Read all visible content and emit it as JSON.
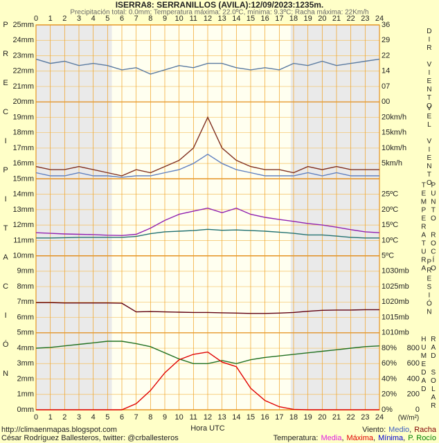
{
  "header": {
    "title": "ISERRA8: SERRANILLOS (AVILA):12/09/2023:1235m.",
    "subtitle": "Precipitación total: 0.0mm; Temperatura máxima: 22.0ºC, mínima: 9.3ºC; Racha máxima: 22Km/h"
  },
  "left_label": "PRECIPITACIÓN",
  "precipitation_axis": {
    "ylim": [
      0,
      25
    ],
    "yticks": [
      {
        "value": 0,
        "label": "0mm"
      },
      {
        "value": 1,
        "label": "1mm"
      },
      {
        "value": 2,
        "label": "2mm"
      },
      {
        "value": 3,
        "label": "3mm"
      },
      {
        "value": 4,
        "label": "4mm"
      },
      {
        "value": 5,
        "label": "5mm"
      },
      {
        "value": 6,
        "label": "6mm"
      },
      {
        "value": 7,
        "label": "7mm"
      },
      {
        "value": 8,
        "label": "8mm"
      },
      {
        "value": 9,
        "label": "9mm"
      },
      {
        "value": 10,
        "label": "10mm"
      },
      {
        "value": 11,
        "label": "11mm"
      },
      {
        "value": 12,
        "label": "12mm"
      },
      {
        "value": 13,
        "label": "13mm"
      },
      {
        "value": 14,
        "label": "14mm"
      },
      {
        "value": 15,
        "label": "15mm"
      },
      {
        "value": 16,
        "label": "16mm"
      },
      {
        "value": 17,
        "label": "17mm"
      },
      {
        "value": 18,
        "label": "18mm"
      },
      {
        "value": 19,
        "label": "19mm"
      },
      {
        "value": 20,
        "label": "20mm"
      },
      {
        "value": 21,
        "label": "21mm"
      },
      {
        "value": 22,
        "label": "22mm"
      },
      {
        "value": 23,
        "label": "23mm"
      },
      {
        "value": 24,
        "label": "24mm"
      },
      {
        "value": 25,
        "label": "25mm"
      }
    ]
  },
  "time_axis": {
    "xlim": [
      0,
      24
    ],
    "xticks": [
      0,
      1,
      2,
      3,
      4,
      5,
      6,
      7,
      8,
      9,
      10,
      11,
      12,
      13,
      14,
      15,
      16,
      17,
      18,
      19,
      20,
      21,
      22,
      23,
      24
    ],
    "xlabel": "Hora UTC",
    "night": [
      [
        0,
        5.3
      ],
      [
        17.8,
        24
      ]
    ]
  },
  "chart_data": [
    {
      "type": "line",
      "right_labels": [
        {
          "text": "DIR VIENTO",
          "color": "#555555"
        }
      ],
      "label_color": "#444444",
      "ylim": [
        0,
        36
      ],
      "yticks": [
        {
          "value": 0,
          "label": "00"
        },
        {
          "value": 7.2,
          "label": "07"
        },
        {
          "value": 14.4,
          "label": "14"
        },
        {
          "value": 21.6,
          "label": "22"
        },
        {
          "value": 28.8,
          "label": "29"
        },
        {
          "value": 36,
          "label": "36"
        }
      ],
      "x": [
        0,
        1,
        2,
        3,
        4,
        5,
        6,
        7,
        8,
        9,
        10,
        11,
        12,
        13,
        14,
        15,
        16,
        17,
        18,
        19,
        20,
        21,
        22,
        23,
        24
      ],
      "series": [
        {
          "name": "Dirección",
          "color": "#5a7aa0",
          "values": [
            20,
            18,
            19,
            17,
            18,
            17,
            15,
            16,
            13,
            15,
            17,
            16,
            18,
            18,
            16,
            15,
            16,
            15,
            18,
            17,
            19,
            17,
            18,
            19,
            20
          ]
        }
      ]
    },
    {
      "type": "line",
      "right_labels": [
        {
          "text": "VEL VIENTO",
          "color": "#555555"
        }
      ],
      "label_color": "#444444",
      "ylim": [
        0,
        25
      ],
      "yticks": [
        {
          "value": 5,
          "label": "5km/h"
        },
        {
          "value": 10,
          "label": "10km/h"
        },
        {
          "value": 15,
          "label": "15km/h"
        },
        {
          "value": 20,
          "label": "20km/h"
        }
      ],
      "x": [
        0,
        1,
        2,
        3,
        4,
        5,
        6,
        7,
        8,
        9,
        10,
        11,
        12,
        13,
        14,
        15,
        16,
        17,
        18,
        19,
        20,
        21,
        22,
        23,
        24
      ],
      "series": [
        {
          "name": "Racha",
          "color": "#803020",
          "values": [
            4,
            3,
            3,
            4,
            3,
            2,
            1,
            3,
            2,
            4,
            6,
            10,
            20,
            10,
            6,
            4,
            3,
            3,
            2,
            4,
            3,
            4,
            3,
            3,
            3
          ]
        },
        {
          "name": "Medio",
          "color": "#6080c0",
          "values": [
            2,
            1,
            1,
            2,
            1,
            1,
            0.5,
            1,
            1,
            2,
            3,
            5,
            8,
            5,
            3,
            2,
            1,
            1,
            1,
            2,
            1,
            2,
            1,
            1,
            1
          ]
        }
      ]
    },
    {
      "type": "line",
      "right_labels": [
        {
          "text": "TEMPERATURA",
          "color": "#555555"
        },
        {
          "text": "PUNTO ROCÍO",
          "color": "#555555"
        }
      ],
      "label_color": "#444444",
      "ylim": [
        5,
        30
      ],
      "yticks": [
        {
          "value": 5,
          "label": "5ºC"
        },
        {
          "value": 10,
          "label": "10ºC"
        },
        {
          "value": 15,
          "label": "15ºC"
        },
        {
          "value": 20,
          "label": "20ºC"
        },
        {
          "value": 25,
          "label": "25ºC"
        }
      ],
      "x": [
        0,
        1,
        2,
        3,
        4,
        5,
        6,
        7,
        8,
        9,
        10,
        11,
        12,
        13,
        14,
        15,
        16,
        17,
        18,
        19,
        20,
        21,
        22,
        23,
        24
      ],
      "series": [
        {
          "name": "Media",
          "color": "#9020b0",
          "values": [
            12.5,
            12.3,
            12.1,
            12,
            11.9,
            11.7,
            11.6,
            12,
            14,
            16.5,
            18.5,
            19.5,
            20.5,
            19,
            20.5,
            18.5,
            17.5,
            16.8,
            16.2,
            15.5,
            15,
            14.3,
            13.5,
            12.8,
            12.5
          ]
        },
        {
          "name": "P. Rocío",
          "color": "#207070",
          "values": [
            10.8,
            10.8,
            10.9,
            11,
            11,
            11,
            11,
            11.3,
            12.2,
            12.8,
            13,
            13.2,
            13.6,
            13.3,
            13.4,
            13.2,
            13,
            12.7,
            12.3,
            11.8,
            11.8,
            11.4,
            11,
            10.8,
            10.8
          ]
        }
      ]
    },
    {
      "type": "line",
      "right_labels": [
        {
          "text": "PRESIÓN",
          "color": "#800000"
        }
      ],
      "label_color": "#300000",
      "ylim": [
        1010,
        1035
      ],
      "yticks": [
        {
          "value": 1010,
          "label": "1010mb"
        },
        {
          "value": 1015,
          "label": "1015mb"
        },
        {
          "value": 1020,
          "label": "1020mb"
        },
        {
          "value": 1025,
          "label": "1025mb"
        },
        {
          "value": 1030,
          "label": "1030mb"
        }
      ],
      "x": [
        0,
        1,
        2,
        3,
        4,
        5,
        6,
        7,
        8,
        9,
        10,
        11,
        12,
        13,
        14,
        15,
        16,
        17,
        18,
        19,
        20,
        21,
        22,
        23,
        24
      ],
      "series": [
        {
          "name": "Presión",
          "color": "#600010",
          "values": [
            1019.8,
            1019.8,
            1019.7,
            1019.7,
            1019.7,
            1019.7,
            1019.6,
            1016.8,
            1016.9,
            1016.8,
            1016.7,
            1016.6,
            1016.6,
            1016.5,
            1016.4,
            1016.3,
            1016.3,
            1016.4,
            1016.6,
            1017,
            1017.3,
            1017.4,
            1017.4,
            1017.5,
            1017.5
          ]
        }
      ]
    },
    {
      "type": "line",
      "right_labels": [
        {
          "text": "HUMEDAD",
          "color": "#208020"
        },
        {
          "text": "RAD SOLAR",
          "color": "#e00000"
        }
      ],
      "label_color": "#208020",
      "y2_label_color": "#e00000",
      "ylim": [
        0,
        100
      ],
      "yticks": [
        {
          "value": 0,
          "label": "0%"
        },
        {
          "value": 20,
          "label": "20%"
        },
        {
          "value": 40,
          "label": "40%"
        },
        {
          "value": 60,
          "label": "60%"
        },
        {
          "value": 80,
          "label": "80%"
        }
      ],
      "y2lim": [
        0,
        1000
      ],
      "y2ticks": [
        0,
        200,
        400,
        600,
        800
      ],
      "y2unit": "(W/m²)",
      "x": [
        0,
        1,
        2,
        3,
        4,
        5,
        6,
        7,
        8,
        9,
        10,
        11,
        12,
        13,
        14,
        15,
        16,
        17,
        18,
        19,
        20,
        21,
        22,
        23,
        24
      ],
      "series": [
        {
          "name": "Humedad",
          "color": "#207020",
          "values": [
            80,
            81,
            83,
            85,
            87,
            89,
            89,
            86,
            82,
            74,
            66,
            60,
            60,
            64,
            60,
            65,
            68,
            70,
            72,
            74,
            76,
            78,
            80,
            82,
            83
          ]
        },
        {
          "name": "Radiación",
          "color": "#e00000",
          "axis": "y2",
          "values": [
            0,
            0,
            0,
            0,
            0,
            0,
            0,
            80,
            250,
            480,
            650,
            720,
            750,
            620,
            560,
            280,
            120,
            40,
            5,
            0,
            0,
            0,
            0,
            0,
            0
          ]
        }
      ]
    }
  ],
  "footer": {
    "url": "http://climaenmapas.blogspot.com",
    "author": "César Rodríguez Ballesteros, twitter: @crballesteros",
    "wind": {
      "label": "Viento:",
      "separator": ",",
      "items": [
        {
          "name": "Medio",
          "color": "#4060c0"
        },
        {
          "name": "Racha",
          "color": "#800000"
        }
      ]
    },
    "temperature": {
      "label": "Temperatura:",
      "separator": ",",
      "items": [
        {
          "name": "Media",
          "color": "#e020e0"
        },
        {
          "name": "Máxima",
          "color": "#e00000"
        },
        {
          "name": "Mínima",
          "color": "#0000d0"
        },
        {
          "name": "P. Rocío",
          "color": "#008000"
        }
      ]
    }
  }
}
